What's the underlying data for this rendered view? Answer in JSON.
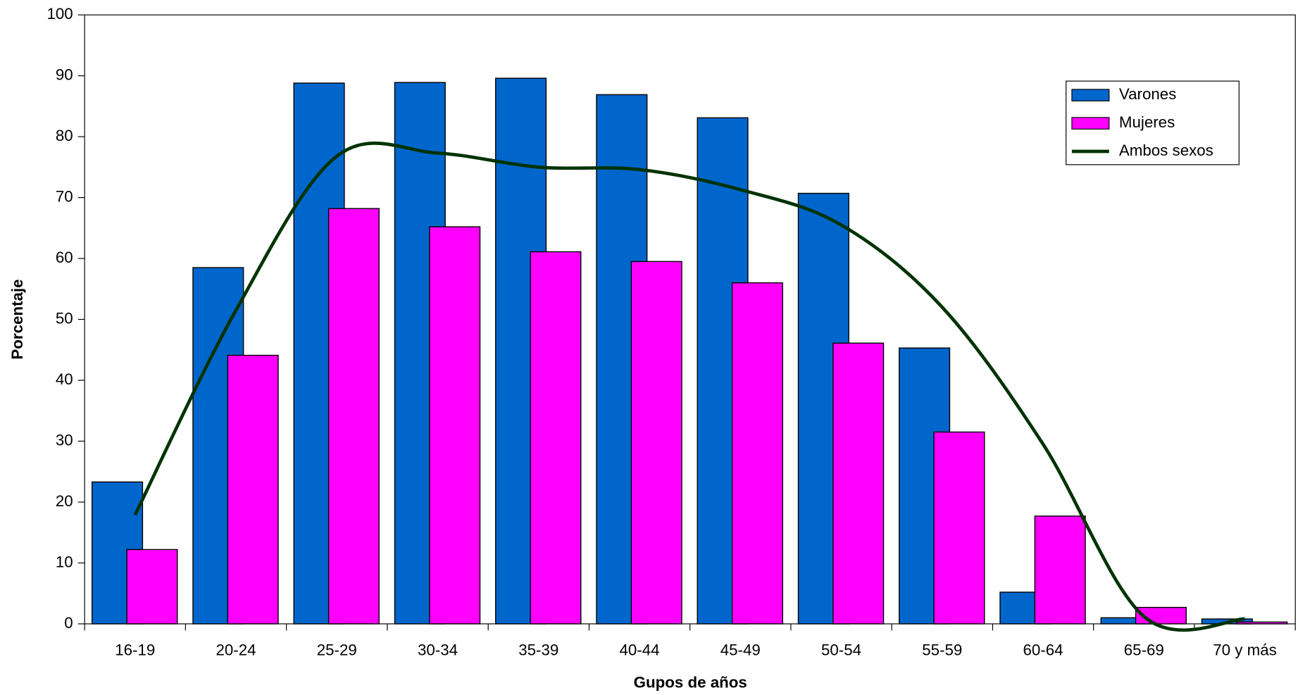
{
  "chart_data": {
    "type": "bar-line",
    "categories": [
      "16-19",
      "20-24",
      "25-29",
      "30-34",
      "35-39",
      "40-44",
      "45-49",
      "50-54",
      "55-59",
      "60-64",
      "65-69",
      "70 y más"
    ],
    "series": [
      {
        "name": "Varones",
        "color": "#0066cc",
        "kind": "bar",
        "values": [
          23.3,
          58.5,
          88.8,
          88.9,
          89.6,
          86.9,
          83.1,
          70.7,
          45.3,
          5.2,
          1.0,
          0.8
        ]
      },
      {
        "name": "Mujeres",
        "color": "#ff00ff",
        "kind": "bar",
        "values": [
          12.2,
          44.1,
          68.2,
          65.2,
          61.1,
          59.5,
          56.0,
          46.1,
          31.5,
          17.7,
          2.7,
          0.3
        ]
      },
      {
        "name": "Ambos sexos",
        "color": "#003300",
        "kind": "line",
        "values": [
          17.9,
          51.5,
          76.8,
          77.3,
          75.0,
          74.6,
          71.3,
          65.5,
          52.0,
          29.5,
          1.2,
          0.8
        ]
      }
    ],
    "x_label": "Gupos de años",
    "y_label": "Porcentaje",
    "ylim": [
      0,
      100
    ],
    "yticks": [
      0,
      10,
      20,
      30,
      40,
      50,
      60,
      70,
      80,
      90,
      100
    ],
    "legend": "top-right"
  }
}
